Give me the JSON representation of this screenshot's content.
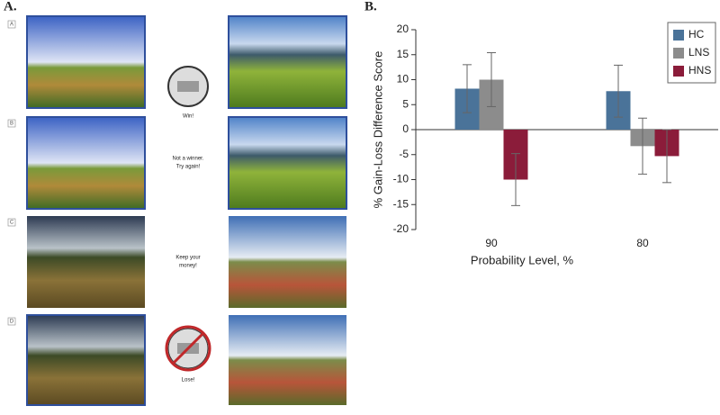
{
  "panel_labels": [
    "A.",
    "B."
  ],
  "panel_a": {
    "rows": [
      {
        "label": "A",
        "caption": [
          "Win!"
        ]
      },
      {
        "label": "B",
        "caption": [
          "Not a winner.",
          "Try again!"
        ]
      },
      {
        "label": "C",
        "caption": [
          "Keep your",
          "money!"
        ]
      },
      {
        "label": "D",
        "caption": [
          "Lose!"
        ]
      }
    ]
  },
  "chart_data": {
    "type": "bar",
    "xlabel": "Probability Level, %",
    "ylabel": "% Gain-Loss Difference Score",
    "categories": [
      "90",
      "80"
    ],
    "series": [
      {
        "name": "HC",
        "color": "#4a7399",
        "values": [
          8.2,
          7.7
        ],
        "errors": [
          4.8,
          5.2
        ]
      },
      {
        "name": "LNS",
        "color": "#8c8c8c",
        "values": [
          10,
          -3.3
        ],
        "errors": [
          5.4,
          5.6
        ]
      },
      {
        "name": "HNS",
        "color": "#8b1c3a",
        "values": [
          -10,
          -5.3
        ],
        "errors": [
          5.2,
          5.3
        ]
      }
    ],
    "ylim": [
      -20,
      20
    ],
    "yticks": [
      -20,
      -15,
      -10,
      -5,
      0,
      5,
      10,
      15,
      20
    ],
    "legend": "upper right"
  }
}
